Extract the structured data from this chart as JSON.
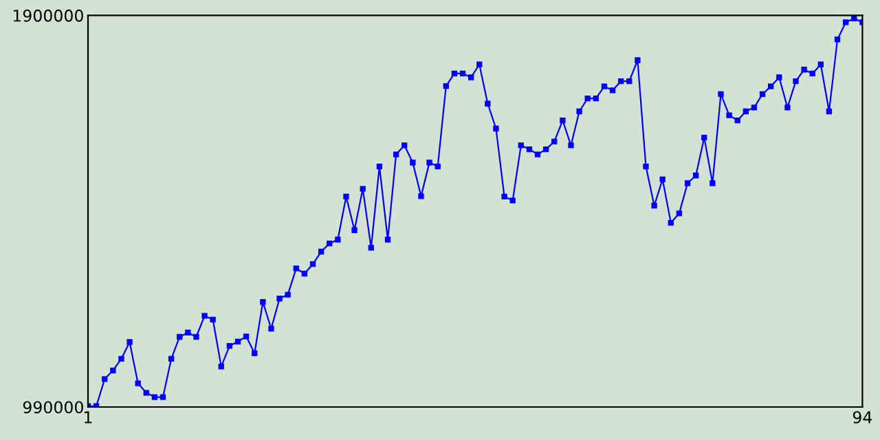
{
  "chart_data": {
    "type": "line",
    "x": [
      1,
      2,
      3,
      4,
      5,
      6,
      7,
      8,
      9,
      10,
      11,
      12,
      13,
      14,
      15,
      16,
      17,
      18,
      19,
      20,
      21,
      22,
      23,
      24,
      25,
      26,
      27,
      28,
      29,
      30,
      31,
      32,
      33,
      34,
      35,
      36,
      37,
      38,
      39,
      40,
      41,
      42,
      43,
      44,
      45,
      46,
      47,
      48,
      49,
      50,
      51,
      52,
      53,
      54,
      55,
      56,
      57,
      58,
      59,
      60,
      61,
      62,
      63,
      64,
      65,
      66,
      67,
      68,
      69,
      70,
      71,
      72,
      73,
      74,
      75,
      76,
      77,
      78,
      79,
      80,
      81,
      82,
      83,
      84,
      85,
      86,
      87,
      88,
      89,
      90,
      91,
      92,
      93,
      94
    ],
    "series": [
      {
        "color": "#0000ff",
        "values": [
          992000,
          992000,
          1055000,
          1075000,
          1102000,
          1141000,
          1045000,
          1023000,
          1013000,
          1013000,
          1102000,
          1153000,
          1163000,
          1153000,
          1202000,
          1193000,
          1084000,
          1132000,
          1142000,
          1154000,
          1115000,
          1234000,
          1172000,
          1242000,
          1251000,
          1312000,
          1300000,
          1322000,
          1351000,
          1370000,
          1379000,
          1479000,
          1401000,
          1497000,
          1360000,
          1549000,
          1379000,
          1577000,
          1598000,
          1558000,
          1480000,
          1558000,
          1549000,
          1736000,
          1765000,
          1765000,
          1756000,
          1786000,
          1695000,
          1637000,
          1479000,
          1470000,
          1598000,
          1589000,
          1577000,
          1589000,
          1607000,
          1656000,
          1598000,
          1677000,
          1707000,
          1707000,
          1735000,
          1726000,
          1747000,
          1747000,
          1796000,
          1549000,
          1458000,
          1519000,
          1418000,
          1440000,
          1510000,
          1528000,
          1616000,
          1510000,
          1717000,
          1668000,
          1656000,
          1677000,
          1686000,
          1717000,
          1735000,
          1756000,
          1686000,
          1747000,
          1774000,
          1765000,
          1786000,
          1677000,
          1844000,
          1884000,
          1893000,
          1884000
        ]
      }
    ],
    "xlim": [
      1,
      94
    ],
    "ylim": [
      990000,
      1900000
    ],
    "xticks": [
      1,
      94
    ],
    "yticks": [
      990000,
      1900000
    ],
    "marker": "square",
    "grid": false,
    "legend": false
  }
}
